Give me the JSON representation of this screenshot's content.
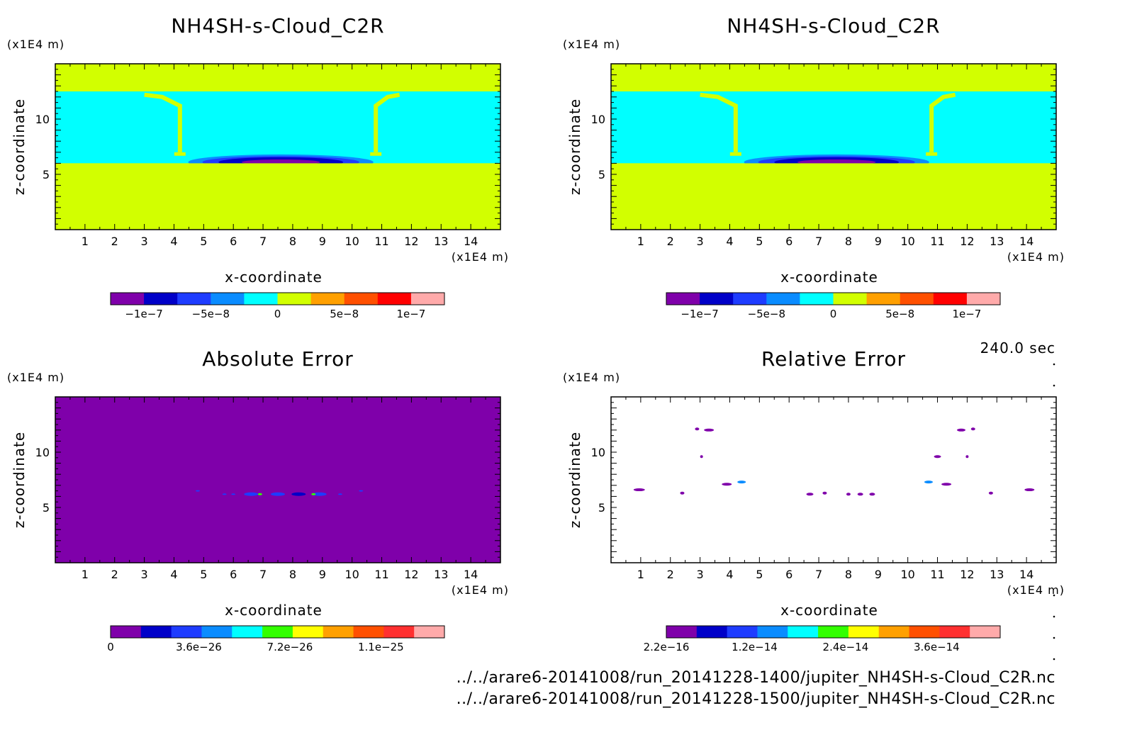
{
  "chart_data": [
    {
      "type": "heatmap",
      "title": "NH4SH-s-Cloud_C2R",
      "xlabel": "x-coordinate",
      "ylabel": "z-coordinate",
      "x_unit": "(x1E4 m)",
      "y_unit": "(x1E4 m)",
      "xlim": [
        0,
        15
      ],
      "ylim": [
        0,
        15
      ],
      "x_ticks": [
        "1",
        "2",
        "3",
        "4",
        "5",
        "6",
        "7",
        "8",
        "9",
        "10",
        "11",
        "12",
        "13",
        "14"
      ],
      "y_ticks": [
        "5",
        "10"
      ],
      "background_level": "0 (yellow-green)",
      "cloud_layer_z": [
        6.0,
        12.5
      ],
      "cloud_layer_value": "slightly negative (cyan)",
      "colorbar": {
        "colors": [
          "#7f00aa",
          "#0000c8",
          "#1e3cff",
          "#0a8cff",
          "#00ffff",
          "#d2ff00",
          "#ffa000",
          "#ff5000",
          "#ff0000",
          "#ffaaaa"
        ],
        "labels": [
          "−1e−7",
          "−5e−8",
          "0",
          "5e−8",
          "1e−7"
        ]
      }
    },
    {
      "type": "heatmap",
      "title": "NH4SH-s-Cloud_C2R",
      "xlabel": "x-coordinate",
      "ylabel": "z-coordinate",
      "x_unit": "(x1E4 m)",
      "y_unit": "(x1E4 m)",
      "xlim": [
        0,
        15
      ],
      "ylim": [
        0,
        15
      ],
      "x_ticks": [
        "1",
        "2",
        "3",
        "4",
        "5",
        "6",
        "7",
        "8",
        "9",
        "10",
        "11",
        "12",
        "13",
        "14"
      ],
      "y_ticks": [
        "5",
        "10"
      ],
      "background_level": "0 (yellow-green)",
      "cloud_layer_z": [
        6.0,
        12.5
      ],
      "cloud_layer_value": "slightly negative (cyan)",
      "colorbar": {
        "colors": [
          "#7f00aa",
          "#0000c8",
          "#1e3cff",
          "#0a8cff",
          "#00ffff",
          "#d2ff00",
          "#ffa000",
          "#ff5000",
          "#ff0000",
          "#ffaaaa"
        ],
        "labels": [
          "−1e−7",
          "−5e−8",
          "0",
          "5e−8",
          "1e−7"
        ]
      }
    },
    {
      "type": "heatmap",
      "title": "Absolute Error",
      "xlabel": "x-coordinate",
      "ylabel": "z-coordinate",
      "x_unit": "(x1E4 m)",
      "y_unit": "(x1E4 m)",
      "xlim": [
        0,
        15
      ],
      "ylim": [
        0,
        15
      ],
      "x_ticks": [
        "1",
        "2",
        "3",
        "4",
        "5",
        "6",
        "7",
        "8",
        "9",
        "10",
        "11",
        "12",
        "13",
        "14"
      ],
      "y_ticks": [
        "5",
        "10"
      ],
      "background_level": "0 (purple)",
      "features": "small nonzero errors near z=6.2, x=5–10.5",
      "colorbar": {
        "colors": [
          "#7f00aa",
          "#0000c8",
          "#1e3cff",
          "#0a8cff",
          "#00ffff",
          "#32ff00",
          "#ffff00",
          "#ffa000",
          "#ff5000",
          "#ff3030",
          "#ffaaaa"
        ],
        "labels": [
          "0",
          "3.6e−26",
          "7.2e−26",
          "1.1e−25"
        ]
      }
    },
    {
      "type": "heatmap",
      "title": "Relative Error",
      "xlabel": "x-coordinate",
      "ylabel": "z-coordinate",
      "x_unit": "(x1E4 m)",
      "y_unit": "(x1E4 m)",
      "xlim": [
        0,
        15
      ],
      "ylim": [
        0,
        15
      ],
      "x_ticks": [
        "1",
        "2",
        "3",
        "4",
        "5",
        "6",
        "7",
        "8",
        "9",
        "10",
        "11",
        "12",
        "13",
        "14"
      ],
      "y_ticks": [
        "5",
        "10"
      ],
      "background_level": "none (white)",
      "features": "scattered small relative-error spots",
      "colorbar": {
        "colors": [
          "#7f00aa",
          "#0000c8",
          "#1e3cff",
          "#0a8cff",
          "#00ffff",
          "#32ff00",
          "#ffff00",
          "#ffa000",
          "#ff5000",
          "#ff3030",
          "#ffaaaa"
        ],
        "labels": [
          "2.2e−16",
          "1.2e−14",
          "2.4e−14",
          "3.6e−14"
        ]
      }
    }
  ],
  "time_label": "240.0 sec",
  "footer": {
    "file1": "../../arare6-20141008/run_20141228-1400/jupiter_NH4SH-s-Cloud_C2R.nc",
    "file2": "../../arare6-20141008/run_20141228-1500/jupiter_NH4SH-s-Cloud_C2R.nc"
  }
}
